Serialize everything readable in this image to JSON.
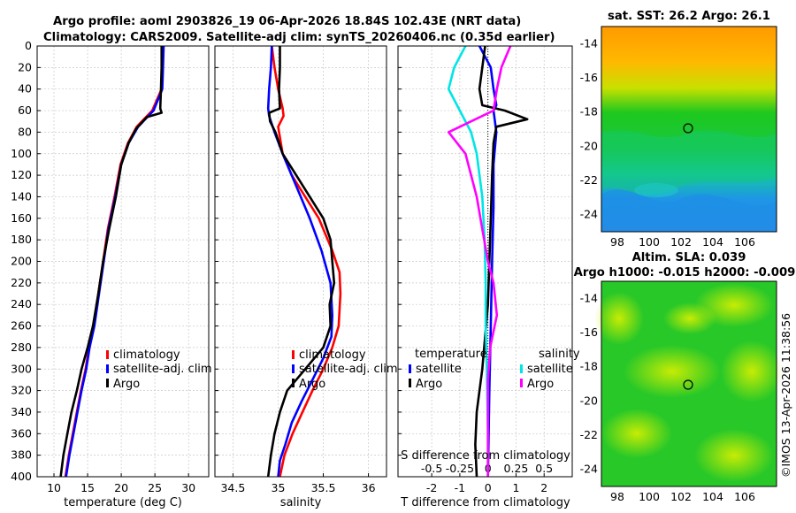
{
  "header": {
    "line1": "Argo profile: aoml 2903826_19 06-Apr-2026 18.84S 102.43E (NRT data)",
    "line2": "Climatology: CARS2009. Satellite-adj clim: synTS_20260406.nc (0.35d earlier)"
  },
  "colors": {
    "climatology": "#ff0000",
    "satellite": "#0000ff",
    "argo": "#000000",
    "sat_salinity": "#00e5e5",
    "argo_salinity": "#ff00ff"
  },
  "depth_axis": {
    "ticks": [
      0,
      20,
      40,
      60,
      80,
      100,
      120,
      140,
      160,
      180,
      200,
      220,
      240,
      260,
      280,
      300,
      320,
      340,
      360,
      380,
      400
    ],
    "range": [
      0,
      400
    ]
  },
  "chart_data": [
    {
      "type": "line",
      "id": "temperature",
      "xlabel": "temperature (deg C)",
      "ylabel": "",
      "xlim": [
        7.5,
        33
      ],
      "xticks": [
        10,
        15,
        20,
        25,
        30
      ],
      "ylim": [
        0,
        400
      ],
      "invert_y": true,
      "grid": true,
      "legend": "lower-right",
      "legend_entries": [
        "climatology",
        "satellite-adj. clim",
        "Argo"
      ],
      "series": [
        {
          "name": "climatology",
          "color": "#ff0000",
          "points": [
            [
              26.2,
              0
            ],
            [
              26.1,
              20
            ],
            [
              26.0,
              40
            ],
            [
              24.6,
              60
            ],
            [
              22.3,
              75
            ],
            [
              21.0,
              90
            ],
            [
              19.9,
              110
            ],
            [
              19.0,
              140
            ],
            [
              18.0,
              170
            ],
            [
              17.3,
              200
            ],
            [
              16.6,
              230
            ],
            [
              15.9,
              260
            ],
            [
              15.2,
              280
            ],
            [
              14.7,
              300
            ],
            [
              14.0,
              320
            ],
            [
              13.4,
              340
            ],
            [
              12.8,
              360
            ],
            [
              12.2,
              380
            ],
            [
              11.7,
              400
            ]
          ]
        },
        {
          "name": "satellite-adj. clim",
          "color": "#0000ff",
          "points": [
            [
              26.3,
              0
            ],
            [
              26.2,
              20
            ],
            [
              26.1,
              40
            ],
            [
              24.8,
              60
            ],
            [
              22.5,
              75
            ],
            [
              21.1,
              90
            ],
            [
              20.0,
              110
            ],
            [
              19.1,
              140
            ],
            [
              18.1,
              170
            ],
            [
              17.4,
              200
            ],
            [
              16.7,
              230
            ],
            [
              16.0,
              260
            ],
            [
              15.3,
              280
            ],
            [
              14.8,
              300
            ],
            [
              14.1,
              320
            ],
            [
              13.5,
              340
            ],
            [
              12.9,
              360
            ],
            [
              12.3,
              380
            ],
            [
              11.8,
              400
            ]
          ]
        },
        {
          "name": "Argo",
          "color": "#000000",
          "points": [
            [
              26.0,
              0
            ],
            [
              26.0,
              20
            ],
            [
              25.9,
              40
            ],
            [
              25.8,
              58
            ],
            [
              26.0,
              62
            ],
            [
              23.8,
              66
            ],
            [
              22.2,
              77
            ],
            [
              21.1,
              90
            ],
            [
              20.0,
              110
            ],
            [
              19.2,
              140
            ],
            [
              18.2,
              170
            ],
            [
              17.3,
              200
            ],
            [
              16.6,
              230
            ],
            [
              15.8,
              260
            ],
            [
              15.0,
              280
            ],
            [
              14.1,
              300
            ],
            [
              13.4,
              320
            ],
            [
              12.6,
              340
            ],
            [
              12.0,
              360
            ],
            [
              11.4,
              380
            ],
            [
              11.0,
              400
            ]
          ]
        }
      ]
    },
    {
      "type": "line",
      "id": "salinity",
      "xlabel": "salinity",
      "ylabel": "",
      "xlim": [
        34.3,
        36.2
      ],
      "xticks": [
        34.5,
        35,
        35.5,
        36
      ],
      "ylim": [
        0,
        400
      ],
      "invert_y": true,
      "grid": true,
      "legend": "lower-right",
      "legend_entries": [
        "climatology",
        "satellite-adj. clim",
        "Argo"
      ],
      "series": [
        {
          "name": "climatology",
          "color": "#ff0000",
          "points": [
            [
              34.93,
              0
            ],
            [
              34.96,
              20
            ],
            [
              35.0,
              40
            ],
            [
              35.05,
              58
            ],
            [
              35.06,
              65
            ],
            [
              35.0,
              75
            ],
            [
              35.05,
              100
            ],
            [
              35.15,
              120
            ],
            [
              35.3,
              140
            ],
            [
              35.45,
              160
            ],
            [
              35.6,
              190
            ],
            [
              35.68,
              210
            ],
            [
              35.69,
              230
            ],
            [
              35.67,
              260
            ],
            [
              35.6,
              280
            ],
            [
              35.5,
              300
            ],
            [
              35.38,
              320
            ],
            [
              35.27,
              340
            ],
            [
              35.16,
              360
            ],
            [
              35.07,
              380
            ],
            [
              35.02,
              400
            ]
          ]
        },
        {
          "name": "satellite-adj. clim",
          "color": "#0000ff",
          "points": [
            [
              34.93,
              0
            ],
            [
              34.92,
              20
            ],
            [
              34.9,
              40
            ],
            [
              34.89,
              58
            ],
            [
              34.9,
              65
            ],
            [
              34.96,
              80
            ],
            [
              35.05,
              100
            ],
            [
              35.15,
              120
            ],
            [
              35.25,
              140
            ],
            [
              35.35,
              160
            ],
            [
              35.48,
              190
            ],
            [
              35.58,
              220
            ],
            [
              35.6,
              250
            ],
            [
              35.59,
              270
            ],
            [
              35.5,
              290
            ],
            [
              35.38,
              310
            ],
            [
              35.26,
              330
            ],
            [
              35.15,
              350
            ],
            [
              35.08,
              370
            ],
            [
              35.02,
              385
            ],
            [
              35.0,
              400
            ]
          ]
        },
        {
          "name": "Argo",
          "color": "#000000",
          "points": [
            [
              35.02,
              0
            ],
            [
              35.02,
              20
            ],
            [
              35.01,
              40
            ],
            [
              35.02,
              58
            ],
            [
              34.9,
              62
            ],
            [
              34.91,
              70
            ],
            [
              34.97,
              80
            ],
            [
              35.05,
              100
            ],
            [
              35.2,
              120
            ],
            [
              35.35,
              140
            ],
            [
              35.5,
              160
            ],
            [
              35.58,
              180
            ],
            [
              35.6,
              200
            ],
            [
              35.62,
              220
            ],
            [
              35.57,
              240
            ],
            [
              35.58,
              260
            ],
            [
              35.5,
              280
            ],
            [
              35.3,
              300
            ],
            [
              35.1,
              320
            ],
            [
              35.02,
              340
            ],
            [
              34.96,
              360
            ],
            [
              34.92,
              380
            ],
            [
              34.89,
              400
            ]
          ]
        }
      ]
    },
    {
      "type": "line",
      "id": "differences",
      "xlabel": "T difference from climatology",
      "xlabel_top": "S difference from climatology",
      "xlim": [
        -3.2,
        3.0
      ],
      "xticks": [
        -2,
        -1,
        0,
        1,
        2
      ],
      "top_xlim": [
        -0.8,
        0.75
      ],
      "top_xticks": [
        -0.5,
        -0.25,
        0,
        0.25,
        0.5
      ],
      "top_xtick_labels": [
        "-0.5",
        "-0.25",
        "0",
        "0.25",
        "0.5"
      ],
      "ylim": [
        0,
        400
      ],
      "invert_y": true,
      "grid": true,
      "legend_temperature_title": "temperature",
      "legend_salinity_title": "salinity",
      "legend_temperature_entries": [
        "satellite",
        "Argo"
      ],
      "legend_salinity_entries": [
        "satellite",
        "Argo"
      ],
      "series": [
        {
          "name": "T satellite",
          "color": "#0000ff",
          "points": [
            [
              -0.3,
              0
            ],
            [
              0.1,
              20
            ],
            [
              0.2,
              40
            ],
            [
              0.3,
              55
            ],
            [
              0.2,
              60
            ],
            [
              0.3,
              80
            ],
            [
              0.2,
              110
            ],
            [
              0.2,
              150
            ],
            [
              0.15,
              200
            ],
            [
              0.1,
              260
            ],
            [
              0.05,
              320
            ],
            [
              0.0,
              400
            ]
          ]
        },
        {
          "name": "T Argo",
          "color": "#000000",
          "points": [
            [
              -0.1,
              0
            ],
            [
              -0.2,
              20
            ],
            [
              -0.3,
              40
            ],
            [
              -0.2,
              55
            ],
            [
              0.6,
              60
            ],
            [
              1.4,
              68
            ],
            [
              0.3,
              75
            ],
            [
              0.2,
              90
            ],
            [
              0.15,
              120
            ],
            [
              0.1,
              160
            ],
            [
              0.05,
              200
            ],
            [
              0.0,
              240
            ],
            [
              -0.2,
              300
            ],
            [
              -0.4,
              340
            ],
            [
              -0.45,
              370
            ],
            [
              -0.4,
              400
            ]
          ]
        },
        {
          "name": "S satellite",
          "color": "#00e5e5",
          "points": [
            [
              -0.2,
              0
            ],
            [
              -0.3,
              20
            ],
            [
              -0.35,
              40
            ],
            [
              -0.25,
              60
            ],
            [
              -0.15,
              80
            ],
            [
              -0.1,
              100
            ],
            [
              -0.05,
              140
            ],
            [
              -0.03,
              180
            ],
            [
              -0.02,
              220
            ],
            [
              -0.02,
              260
            ],
            [
              -0.01,
              300
            ],
            [
              0.0,
              360
            ],
            [
              0.0,
              400
            ]
          ]
        },
        {
          "name": "S Argo",
          "color": "#ff00ff",
          "points": [
            [
              0.2,
              0
            ],
            [
              0.12,
              20
            ],
            [
              0.08,
              40
            ],
            [
              0.05,
              60
            ],
            [
              -0.35,
              80
            ],
            [
              -0.2,
              100
            ],
            [
              -0.1,
              140
            ],
            [
              -0.05,
              170
            ],
            [
              0.0,
              200
            ],
            [
              0.05,
              220
            ],
            [
              0.08,
              250
            ],
            [
              0.02,
              280
            ],
            [
              0.0,
              310
            ],
            [
              0.0,
              400
            ]
          ]
        }
      ]
    },
    {
      "type": "heatmap",
      "id": "sst_map",
      "title": "sat. SST: 26.2 Argo: 26.1",
      "xticks": [
        98,
        100,
        102,
        104,
        106
      ],
      "yticks": [
        -14,
        -16,
        -18,
        -20,
        -22,
        -24
      ],
      "xlim": [
        97,
        108
      ],
      "ylim": [
        -25,
        -13
      ],
      "marker": {
        "lon": 102.43,
        "lat": -18.84
      }
    },
    {
      "type": "heatmap",
      "id": "sla_map",
      "title": "Altim. SLA: 0.039",
      "subtitle": "Argo h1000: -0.015 h2000: -0.009",
      "xticks": [
        98,
        100,
        102,
        104,
        106
      ],
      "yticks": [
        -14,
        -16,
        -18,
        -20,
        -22,
        -24
      ],
      "xlim": [
        97,
        108
      ],
      "ylim": [
        -25,
        -13
      ],
      "marker": {
        "lon": 102.43,
        "lat": -18.84
      }
    }
  ],
  "watermark": "©IMOS 13-Apr-2026 11:38:56"
}
